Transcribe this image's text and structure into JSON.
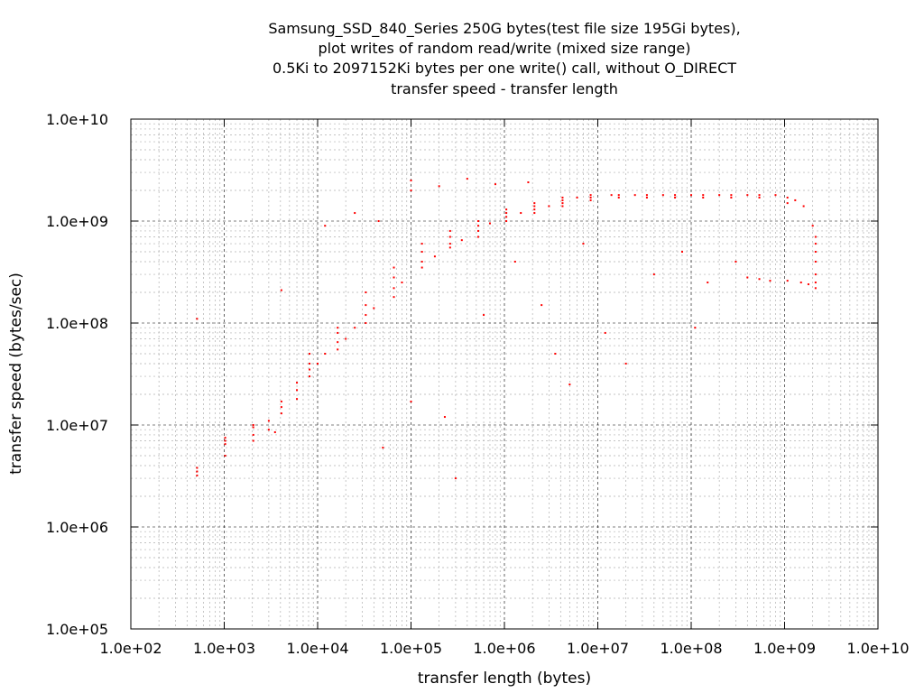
{
  "chart_data": {
    "type": "scatter",
    "title_lines": [
      "Samsung_SSD_840_Series 250G bytes(test file size 195Gi bytes),",
      "plot writes of random read/write (mixed size range)",
      "0.5Ki to 2097152Ki bytes per one write() call, without O_DIRECT",
      "transfer speed - transfer length"
    ],
    "xlabel": "transfer length (bytes)",
    "ylabel": "transfer speed (bytes/sec)",
    "x_scale": "log",
    "y_scale": "log",
    "xlim": [
      100,
      10000000000
    ],
    "ylim": [
      100000,
      10000000000
    ],
    "x_tick_values": [
      100,
      1000,
      10000,
      100000,
      1000000,
      10000000,
      100000000,
      1000000000,
      10000000000
    ],
    "x_tick_labels": [
      "1.0e+02",
      "1.0e+03",
      "1.0e+04",
      "1.0e+05",
      "1.0e+06",
      "1.0e+07",
      "1.0e+08",
      "1.0e+09",
      "1.0e+10"
    ],
    "y_tick_values": [
      100000,
      1000000,
      10000000,
      100000000,
      1000000000,
      10000000000
    ],
    "y_tick_labels": [
      "1.0e+05",
      "1.0e+06",
      "1.0e+07",
      "1.0e+08",
      "1.0e+09",
      "1.0e+10"
    ],
    "grid": true,
    "series": [
      {
        "color": "#ff0000",
        "points": [
          [
            512,
            3500000
          ],
          [
            512,
            3800000
          ],
          [
            512,
            3200000
          ],
          [
            512,
            110000000
          ],
          [
            1024,
            7000000
          ],
          [
            1024,
            6500000
          ],
          [
            1024,
            7500000
          ],
          [
            1024,
            5000000
          ],
          [
            2048,
            8000000
          ],
          [
            2048,
            7000000
          ],
          [
            2048,
            9500000
          ],
          [
            2048,
            10000000
          ],
          [
            3000,
            9000000
          ],
          [
            3000,
            11000000
          ],
          [
            3500,
            8500000
          ],
          [
            4096,
            15000000
          ],
          [
            4096,
            13000000
          ],
          [
            4096,
            17000000
          ],
          [
            4096,
            210000000
          ],
          [
            6000,
            18000000
          ],
          [
            6000,
            22000000
          ],
          [
            6000,
            26000000
          ],
          [
            8192,
            30000000
          ],
          [
            8192,
            35000000
          ],
          [
            8192,
            40000000
          ],
          [
            8192,
            50000000
          ],
          [
            10000,
            40000000
          ],
          [
            12000,
            50000000
          ],
          [
            12000,
            900000000
          ],
          [
            16384,
            55000000
          ],
          [
            16384,
            65000000
          ],
          [
            16384,
            80000000
          ],
          [
            16384,
            90000000
          ],
          [
            20000,
            70000000
          ],
          [
            25000,
            90000000
          ],
          [
            25000,
            1200000000
          ],
          [
            32768,
            100000000
          ],
          [
            32768,
            120000000
          ],
          [
            32768,
            150000000
          ],
          [
            32768,
            200000000
          ],
          [
            40000,
            140000000
          ],
          [
            45000,
            1000000000
          ],
          [
            50000,
            6000000
          ],
          [
            65536,
            180000000
          ],
          [
            65536,
            220000000
          ],
          [
            65536,
            280000000
          ],
          [
            65536,
            350000000
          ],
          [
            80000,
            250000000
          ],
          [
            100000,
            17000000
          ],
          [
            100000,
            2000000000
          ],
          [
            100000,
            2500000000
          ],
          [
            131072,
            350000000
          ],
          [
            131072,
            400000000
          ],
          [
            131072,
            500000000
          ],
          [
            131072,
            600000000
          ],
          [
            180000,
            450000000
          ],
          [
            200000,
            2200000000
          ],
          [
            230000,
            12000000
          ],
          [
            262144,
            550000000
          ],
          [
            262144,
            600000000
          ],
          [
            262144,
            700000000
          ],
          [
            262144,
            800000000
          ],
          [
            300000,
            3000000
          ],
          [
            350000,
            650000000
          ],
          [
            400000,
            2600000000
          ],
          [
            524288,
            700000000
          ],
          [
            524288,
            800000000
          ],
          [
            524288,
            900000000
          ],
          [
            524288,
            1000000000
          ],
          [
            600000,
            120000000
          ],
          [
            700000,
            950000000
          ],
          [
            800000,
            2300000000
          ],
          [
            1048576,
            1000000000
          ],
          [
            1048576,
            1100000000
          ],
          [
            1048576,
            1200000000
          ],
          [
            1048576,
            1300000000
          ],
          [
            1300000,
            400000000
          ],
          [
            1500000,
            1200000000
          ],
          [
            1800000,
            2400000000
          ],
          [
            2097152,
            1200000000
          ],
          [
            2097152,
            1300000000
          ],
          [
            2097152,
            1400000000
          ],
          [
            2097152,
            1500000000
          ],
          [
            2500000,
            150000000
          ],
          [
            3000000,
            1400000000
          ],
          [
            3500000,
            50000000
          ],
          [
            4194304,
            1400000000
          ],
          [
            4194304,
            1500000000
          ],
          [
            4194304,
            1600000000
          ],
          [
            4194304,
            1700000000
          ],
          [
            5000000,
            25000000
          ],
          [
            6000000,
            1700000000
          ],
          [
            7000000,
            600000000
          ],
          [
            8388608,
            1600000000
          ],
          [
            8388608,
            1700000000
          ],
          [
            8388608,
            1800000000
          ],
          [
            12000000,
            80000000
          ],
          [
            14000000,
            1800000000
          ],
          [
            16777216,
            1700000000
          ],
          [
            16777216,
            1800000000
          ],
          [
            20000000,
            40000000
          ],
          [
            25000000,
            1800000000
          ],
          [
            33554432,
            1700000000
          ],
          [
            33554432,
            1800000000
          ],
          [
            40000000,
            300000000
          ],
          [
            50000000,
            1800000000
          ],
          [
            67108864,
            1700000000
          ],
          [
            67108864,
            1800000000
          ],
          [
            80000000,
            500000000
          ],
          [
            100000000,
            1800000000
          ],
          [
            110000000,
            90000000
          ],
          [
            134217728,
            1700000000
          ],
          [
            134217728,
            1800000000
          ],
          [
            150000000,
            250000000
          ],
          [
            200000000,
            1800000000
          ],
          [
            268435456,
            1700000000
          ],
          [
            268435456,
            1800000000
          ],
          [
            300000000,
            400000000
          ],
          [
            400000000,
            280000000
          ],
          [
            400000000,
            1800000000
          ],
          [
            536870912,
            1700000000
          ],
          [
            536870912,
            1800000000
          ],
          [
            536870912,
            270000000
          ],
          [
            700000000,
            260000000
          ],
          [
            800000000,
            1800000000
          ],
          [
            1073741824,
            1700000000
          ],
          [
            1073741824,
            1500000000
          ],
          [
            1073741824,
            260000000
          ],
          [
            1300000000,
            1600000000
          ],
          [
            1500000000,
            250000000
          ],
          [
            1600000000,
            1400000000
          ],
          [
            1800000000,
            240000000
          ],
          [
            2000000000,
            900000000
          ],
          [
            2147483648,
            700000000
          ],
          [
            2147483648,
            600000000
          ],
          [
            2147483648,
            500000000
          ],
          [
            2147483648,
            400000000
          ],
          [
            2147483648,
            300000000
          ],
          [
            2147483648,
            250000000
          ],
          [
            2147483648,
            220000000
          ]
        ]
      }
    ]
  }
}
